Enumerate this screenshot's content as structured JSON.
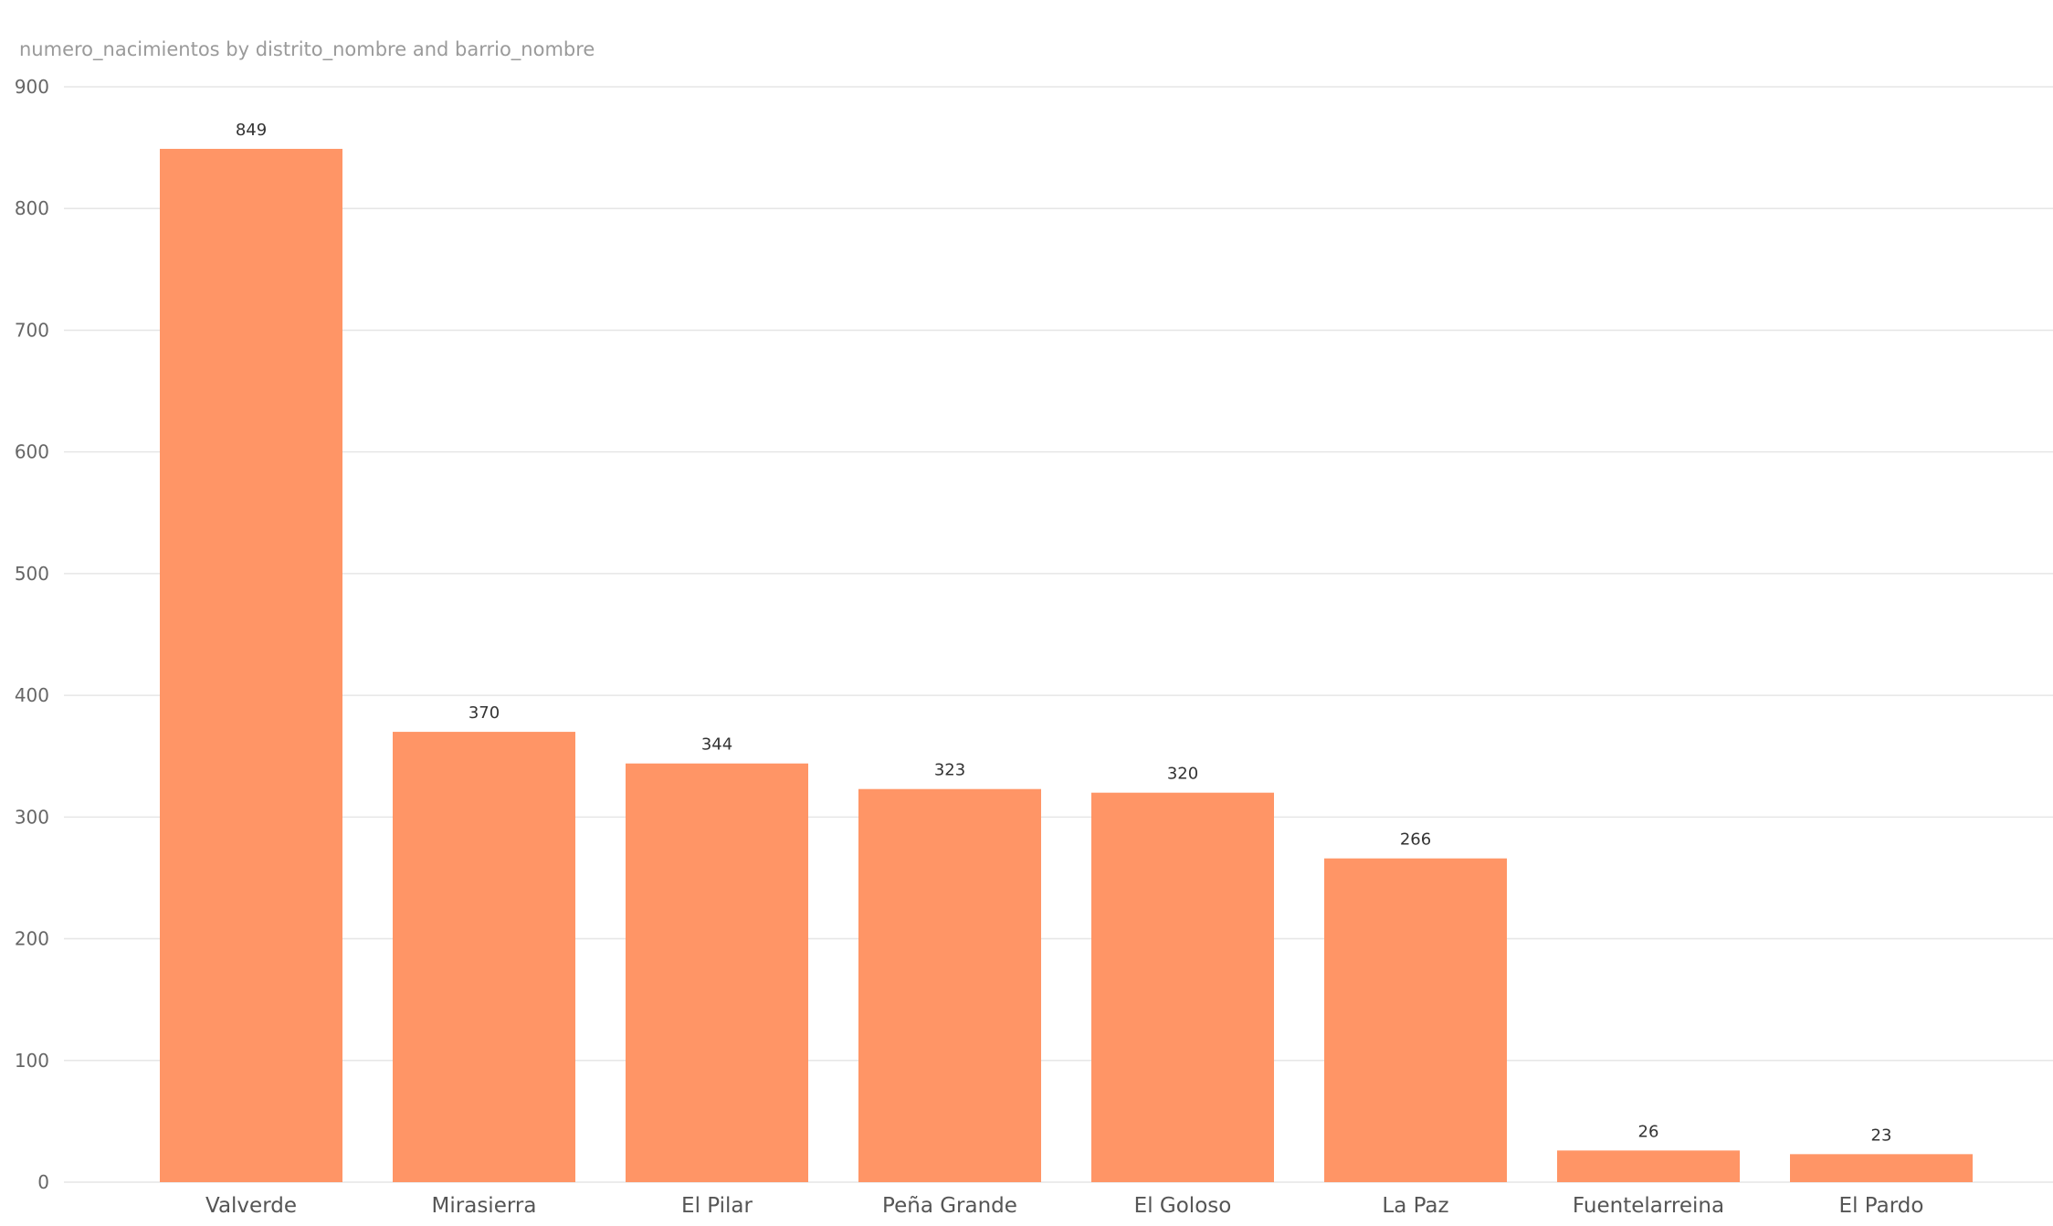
{
  "chart_data": {
    "type": "bar",
    "title": "numero_nacimientos by distrito_nombre and barrio_nombre",
    "xlabel": "",
    "ylabel": "",
    "categories": [
      "Valverde",
      "Mirasierra",
      "El Pilar",
      "Peña Grande",
      "El Goloso",
      "La Paz",
      "Fuentelarreina",
      "El Pardo"
    ],
    "values": [
      849,
      370,
      344,
      323,
      320,
      266,
      26,
      23
    ],
    "ylim": [
      0,
      900
    ],
    "yticks": [
      0,
      100,
      200,
      300,
      400,
      500,
      600,
      700,
      800,
      900
    ],
    "grid": true,
    "data_labels": true,
    "bar_color": "#FF9566",
    "legend": "none"
  }
}
